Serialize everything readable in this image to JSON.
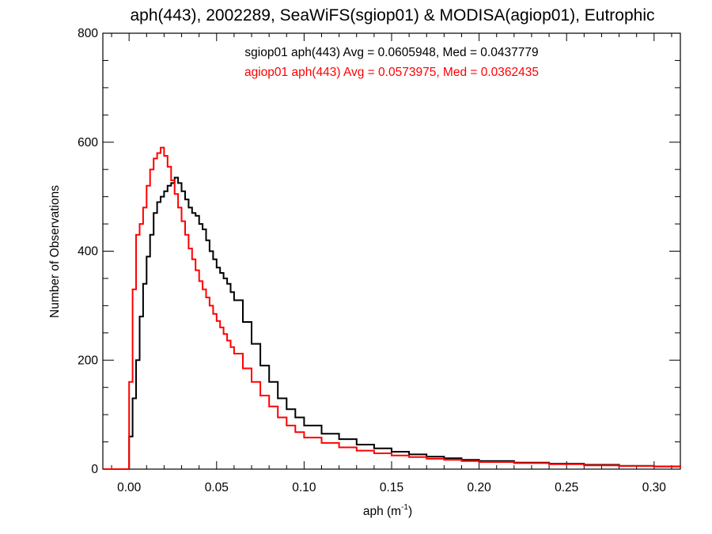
{
  "chart_data": {
    "type": "line",
    "title": "aph(443), 2002289, SeaWiFS(sgiop01) & MODISA(agiop01), Eutrophic",
    "xlabel_main": "aph (m",
    "xlabel_sup": "-1",
    "xlabel_close": ")",
    "ylabel": "Number of Observations",
    "xlim": [
      -0.015,
      0.315
    ],
    "ylim": [
      0,
      800
    ],
    "x_ticks": [
      0.0,
      0.05,
      0.1,
      0.15,
      0.2,
      0.25,
      0.3
    ],
    "x_tick_labels": [
      "0.00",
      "0.05",
      "0.10",
      "0.15",
      "0.20",
      "0.25",
      "0.30"
    ],
    "y_ticks": [
      0,
      200,
      400,
      600,
      800
    ],
    "y_tick_labels": [
      "0",
      "200",
      "400",
      "600",
      "800"
    ],
    "grid": false,
    "legend": [
      {
        "text": "sgiop01 aph(443) Avg = 0.0605948, Med = 0.0437779",
        "color": "#000000"
      },
      {
        "text": "agiop01 aph(443) Avg = 0.0573975, Med = 0.0362435",
        "color": "#ff0000"
      }
    ],
    "series": [
      {
        "color": "#000000",
        "x": [
          -0.015,
          -0.001,
          0.0,
          0.002,
          0.004,
          0.006,
          0.008,
          0.01,
          0.012,
          0.014,
          0.016,
          0.018,
          0.02,
          0.022,
          0.024,
          0.026,
          0.028,
          0.03,
          0.032,
          0.034,
          0.036,
          0.038,
          0.04,
          0.042,
          0.044,
          0.046,
          0.048,
          0.05,
          0.052,
          0.054,
          0.056,
          0.058,
          0.06,
          0.065,
          0.07,
          0.075,
          0.08,
          0.085,
          0.09,
          0.095,
          0.1,
          0.11,
          0.12,
          0.13,
          0.14,
          0.15,
          0.16,
          0.17,
          0.18,
          0.19,
          0.2,
          0.22,
          0.24,
          0.26,
          0.28,
          0.3,
          0.315
        ],
        "y": [
          0,
          0,
          60,
          130,
          200,
          280,
          340,
          390,
          430,
          470,
          490,
          500,
          510,
          520,
          525,
          535,
          525,
          510,
          495,
          480,
          470,
          465,
          450,
          440,
          420,
          400,
          385,
          370,
          360,
          350,
          340,
          325,
          310,
          270,
          230,
          190,
          160,
          130,
          110,
          95,
          80,
          65,
          55,
          45,
          38,
          32,
          27,
          23,
          20,
          17,
          15,
          12,
          10,
          8,
          6,
          5,
          4
        ]
      },
      {
        "color": "#ff0000",
        "x": [
          -0.015,
          -0.001,
          0.0,
          0.002,
          0.004,
          0.006,
          0.008,
          0.01,
          0.012,
          0.014,
          0.016,
          0.018,
          0.02,
          0.022,
          0.024,
          0.026,
          0.028,
          0.03,
          0.032,
          0.034,
          0.036,
          0.038,
          0.04,
          0.042,
          0.044,
          0.046,
          0.048,
          0.05,
          0.052,
          0.054,
          0.056,
          0.058,
          0.06,
          0.065,
          0.07,
          0.075,
          0.08,
          0.085,
          0.09,
          0.095,
          0.1,
          0.11,
          0.12,
          0.13,
          0.14,
          0.15,
          0.16,
          0.17,
          0.18,
          0.19,
          0.2,
          0.22,
          0.24,
          0.26,
          0.28,
          0.3,
          0.315
        ],
        "y": [
          0,
          0,
          160,
          330,
          430,
          450,
          480,
          520,
          550,
          570,
          580,
          590,
          575,
          555,
          530,
          505,
          480,
          455,
          430,
          405,
          385,
          365,
          345,
          330,
          315,
          300,
          285,
          272,
          260,
          248,
          236,
          224,
          212,
          185,
          160,
          135,
          115,
          95,
          80,
          68,
          58,
          48,
          40,
          34,
          29,
          25,
          22,
          19,
          17,
          15,
          13,
          11,
          9,
          7,
          6,
          5,
          4
        ]
      }
    ]
  }
}
